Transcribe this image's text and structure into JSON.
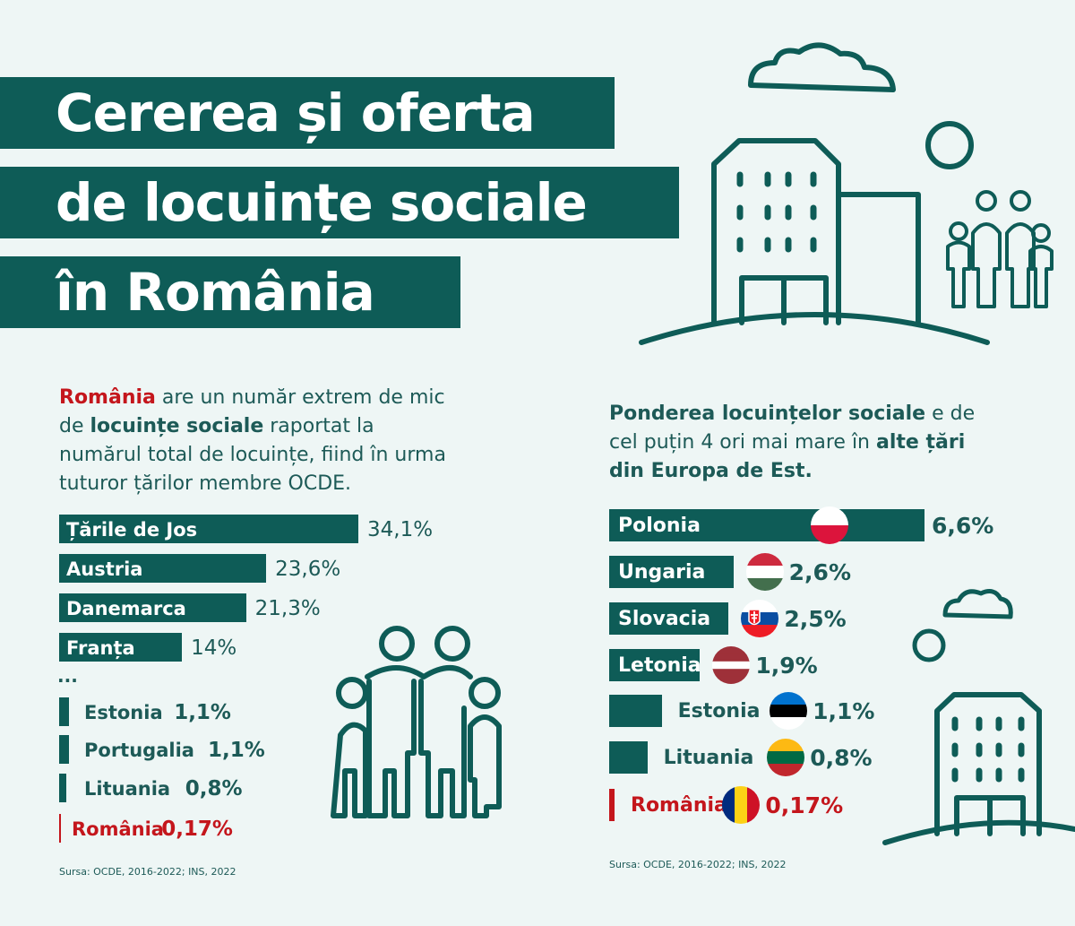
{
  "title": {
    "line1": "Cererea și oferta",
    "line2": "de locuințe sociale",
    "line3": "în România"
  },
  "left": {
    "intro": {
      "p1": "România",
      "p2": " are un număr extrem de mic de ",
      "p3": "locuințe sociale",
      "p4": " raportat la numărul total de locuințe, fiind în urma tuturor țărilor membre OCDE."
    },
    "ellipsis": "...",
    "source": "Sursa: OCDE, 2016-2022; INS, 2022"
  },
  "right": {
    "intro": {
      "p1": "Ponderea locuințelor sociale",
      "p2": " e de cel puțin 4 ori mai mare în ",
      "p3": "alte țări din Europa de Est."
    },
    "source": "Sursa: OCDE, 2016-2022; INS, 2022"
  },
  "colors": {
    "primary": "#0e5c57",
    "highlight": "#c4161c",
    "background": "#eef6f5"
  },
  "chart_data": [
    {
      "type": "bar",
      "orientation": "horizontal",
      "categories": [
        "Țările de Jos",
        "Austria",
        "Danemarca",
        "Franța",
        "Estonia",
        "Portugalia",
        "Lituania",
        "România"
      ],
      "values": [
        34.1,
        23.6,
        21.3,
        14,
        1.1,
        1.1,
        0.8,
        0.17
      ],
      "value_labels": [
        "34,1%",
        "23,6%",
        "21,3%",
        "14%",
        "1,1%",
        "1,1%",
        "0,8%",
        "0,17%"
      ],
      "highlight": "România"
    },
    {
      "type": "bar",
      "orientation": "horizontal",
      "categories": [
        "Polonia",
        "Ungaria",
        "Slovacia",
        "Letonia",
        "Estonia",
        "Lituania",
        "România"
      ],
      "values": [
        6.6,
        2.6,
        2.5,
        1.9,
        1.1,
        0.8,
        0.17
      ],
      "value_labels": [
        "6,6%",
        "2,6%",
        "2,5%",
        "1,9%",
        "1,1%",
        "0,8%",
        "0,17%"
      ],
      "flags": [
        "poland-flag-icon",
        "hungary-flag-icon",
        "slovakia-flag-icon",
        "latvia-flag-icon",
        "estonia-flag-icon",
        "lithuania-flag-icon",
        "romania-flag-icon"
      ],
      "highlight": "România"
    }
  ]
}
